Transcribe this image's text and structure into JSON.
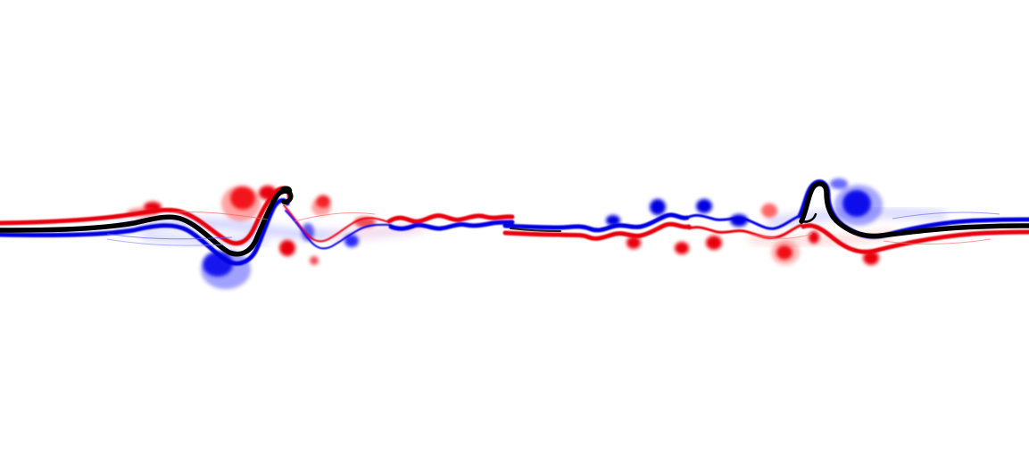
{
  "image": {
    "kind": "vorticity-field-visualization",
    "background_color": "#ffffff",
    "colors": {
      "positive_vorticity": "#e8000b",
      "negative_vorticity": "#0000e0",
      "interface": "#000000"
    }
  }
}
